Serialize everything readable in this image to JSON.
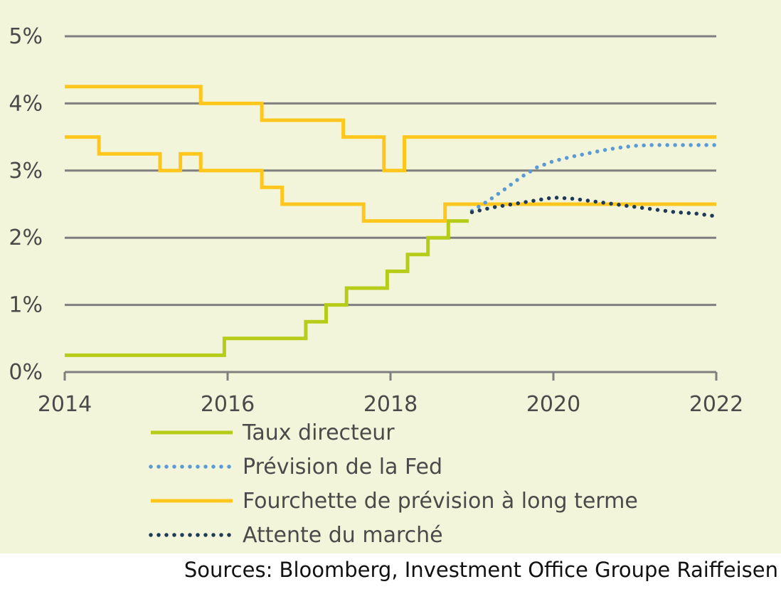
{
  "chart_data": {
    "type": "line",
    "xlim": [
      2014,
      2022
    ],
    "ylim": [
      0,
      5
    ],
    "x_ticks": [
      2014,
      2016,
      2018,
      2020,
      2022
    ],
    "x_tick_labels": [
      "2014",
      "2016",
      "2018",
      "2020",
      "2022"
    ],
    "y_ticks": [
      0,
      1,
      2,
      3,
      4,
      5
    ],
    "y_tick_labels": [
      "0%",
      "1%",
      "2%",
      "3%",
      "4%",
      "5%"
    ],
    "grid": "horizontal",
    "legend_position": "bottom",
    "series": [
      {
        "name": "Taux directeur",
        "style": "solid",
        "color": "#b5cc18",
        "x": [
          2014.0,
          2015.96,
          2015.96,
          2016.96,
          2016.96,
          2017.21,
          2017.21,
          2017.46,
          2017.46,
          2017.96,
          2017.96,
          2018.21,
          2018.21,
          2018.46,
          2018.46,
          2018.71,
          2018.71,
          2018.96
        ],
        "y": [
          0.25,
          0.25,
          0.5,
          0.5,
          0.75,
          0.75,
          1.0,
          1.0,
          1.25,
          1.25,
          1.5,
          1.5,
          1.75,
          1.75,
          2.0,
          2.0,
          2.25,
          2.25
        ]
      },
      {
        "name": "Prévision de la Fed",
        "style": "dotted",
        "color": "#5b9bd5",
        "x": [
          2019.0,
          2019.2,
          2019.4,
          2019.6,
          2019.8,
          2020.0,
          2020.2,
          2020.4,
          2020.6,
          2020.8,
          2021.0,
          2021.2,
          2021.4,
          2021.6,
          2021.8,
          2022.0
        ],
        "y": [
          2.4,
          2.55,
          2.72,
          2.9,
          3.05,
          3.14,
          3.2,
          3.25,
          3.3,
          3.34,
          3.37,
          3.38,
          3.38,
          3.38,
          3.38,
          3.38
        ]
      },
      {
        "name": "Fourchette de prévision à long terme",
        "style": "solid",
        "color": "#ffc61e",
        "x": [
          2014.0,
          2015.67,
          2015.67,
          2016.42,
          2016.42,
          2017.42,
          2017.42,
          2017.92,
          2017.92,
          2018.17,
          2018.17,
          2022.0
        ],
        "y": [
          4.25,
          4.25,
          4.0,
          4.0,
          3.75,
          3.75,
          3.5,
          3.5,
          3.0,
          3.0,
          3.5,
          3.5
        ]
      },
      {
        "name": "Fourchette de prévision à long terme",
        "style": "solid",
        "color": "#ffc61e",
        "legend": false,
        "x": [
          2014.0,
          2014.42,
          2014.42,
          2015.17,
          2015.17,
          2015.42,
          2015.42,
          2015.67,
          2015.67,
          2016.42,
          2016.42,
          2016.67,
          2016.67,
          2017.67,
          2017.67,
          2018.67,
          2018.67,
          2022.0
        ],
        "y": [
          3.5,
          3.5,
          3.25,
          3.25,
          3.0,
          3.0,
          3.25,
          3.25,
          3.0,
          3.0,
          2.75,
          2.75,
          2.5,
          2.5,
          2.25,
          2.25,
          2.5,
          2.5
        ]
      },
      {
        "name": "Attente du marché",
        "style": "dotted",
        "color": "#1f3b57",
        "x": [
          2019.0,
          2019.25,
          2019.5,
          2019.75,
          2020.0,
          2020.25,
          2020.5,
          2020.75,
          2021.0,
          2021.25,
          2021.5,
          2021.75,
          2022.0
        ],
        "y": [
          2.38,
          2.45,
          2.5,
          2.55,
          2.6,
          2.58,
          2.54,
          2.5,
          2.46,
          2.42,
          2.38,
          2.36,
          2.32
        ]
      }
    ]
  },
  "source_note": "Sources: Bloomberg, Investment Office Groupe Raiffeisen"
}
